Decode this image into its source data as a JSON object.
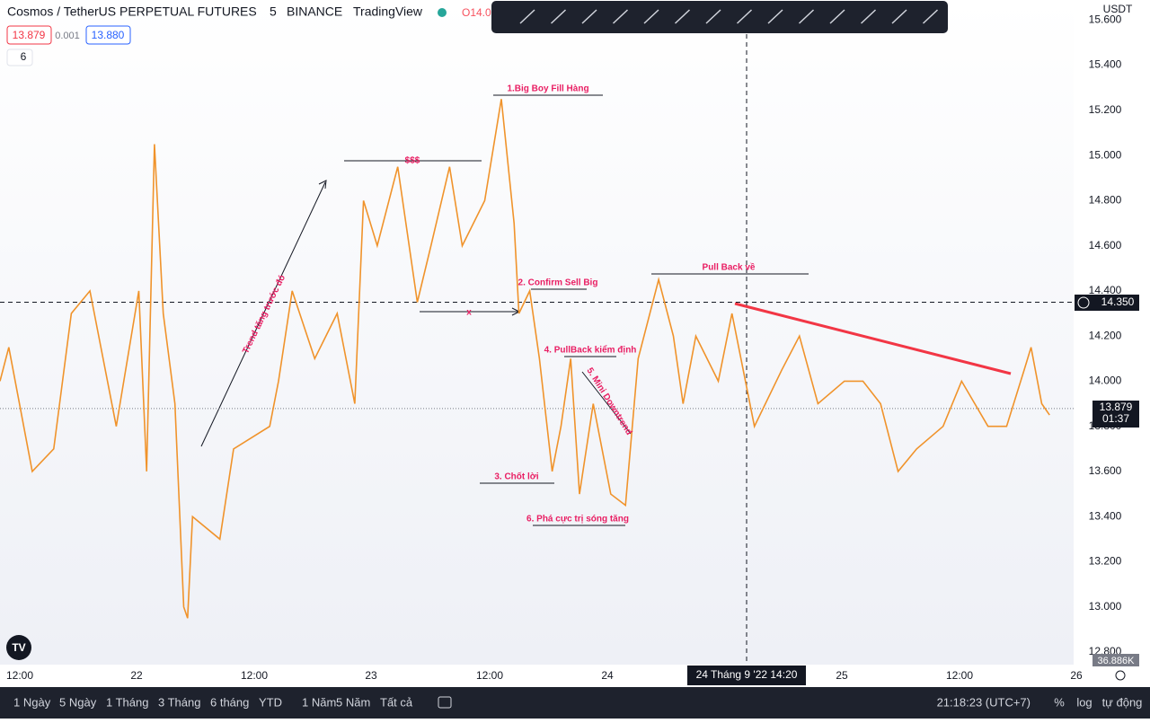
{
  "header": {
    "symbol": "Cosmos / TetherUS PERPETUAL FUTURES",
    "interval": "5",
    "exchange": "BINANCE",
    "source": "TradingView",
    "open_label": "O14.0",
    "bid": "13.879",
    "spread": "0.001",
    "ask": "13.880",
    "indicators": "6"
  },
  "price_axis": {
    "currency": "USDT",
    "ylim": [
      12.8,
      15.6
    ],
    "yticks": [
      {
        "value": 15.6,
        "label": "15.600"
      },
      {
        "value": 15.4,
        "label": "15.400"
      },
      {
        "value": 15.2,
        "label": "15.200"
      },
      {
        "value": 15.0,
        "label": "15.000"
      },
      {
        "value": 14.8,
        "label": "14.800"
      },
      {
        "value": 14.6,
        "label": "14.600"
      },
      {
        "value": 14.4,
        "label": "14.400"
      },
      {
        "value": 14.2,
        "label": "14.200"
      },
      {
        "value": 14.0,
        "label": "14.000"
      },
      {
        "value": 13.8,
        "label": "13.800"
      },
      {
        "value": 13.6,
        "label": "13.600"
      },
      {
        "value": 13.4,
        "label": "13.400"
      },
      {
        "value": 13.2,
        "label": "13.200"
      },
      {
        "value": 13.0,
        "label": "13.000"
      },
      {
        "value": 12.8,
        "label": "12.800"
      }
    ],
    "crosshair": {
      "value": 14.35,
      "label": "14.350"
    },
    "last": {
      "value": 13.879,
      "label": "13.879"
    },
    "countdown": "01:37",
    "volume": "36.886K"
  },
  "price": {
    "xlim": [
      -2,
      107.4
    ],
    "x": [
      -2.0,
      -1.1,
      1.3,
      3.5,
      5.3,
      7.2,
      9.9,
      12.2,
      13.0,
      13.8,
      14.7,
      15.9,
      16.8,
      17.2,
      17.7,
      20.5,
      21.9,
      25.6,
      26.5,
      27.9,
      30.2,
      32.5,
      34.3,
      35.2,
      36.6,
      38.7,
      40.7,
      42.1,
      44.0,
      45.3,
      47.6,
      49.3,
      50.6,
      51.1,
      52.2,
      53.2,
      54.5,
      55.4,
      56.4,
      57.3,
      58.7,
      60.5,
      62.0,
      63.3,
      65.4,
      66.9,
      67.9,
      69.2,
      71.5,
      72.9,
      75.2,
      78.0,
      79.8,
      81.7,
      84.4,
      86.3,
      88.1,
      89.9,
      91.8,
      94.5,
      96.4,
      99.1,
      101.0,
      102.8,
      103.5,
      104.6,
      105.4
    ],
    "values": [
      14.0,
      14.15,
      13.6,
      13.7,
      14.3,
      14.4,
      13.8,
      14.4,
      13.6,
      15.05,
      14.3,
      13.9,
      13.0,
      12.95,
      13.4,
      13.3,
      13.7,
      13.8,
      14.0,
      14.4,
      14.1,
      14.3,
      13.9,
      14.8,
      14.6,
      14.95,
      14.35,
      14.6,
      14.95,
      14.6,
      14.8,
      15.25,
      14.7,
      14.3,
      14.4,
      14.1,
      13.6,
      13.8,
      14.1,
      13.5,
      13.9,
      13.5,
      13.45,
      14.1,
      14.45,
      14.2,
      13.9,
      14.2,
      14.0,
      14.3,
      13.8,
      14.05,
      14.2,
      13.9,
      14.0,
      14.0,
      13.9,
      13.6,
      13.7,
      13.8,
      14.0,
      13.8,
      13.8,
      14.05,
      14.15,
      13.9,
      13.85
    ],
    "color": "#f0932b"
  },
  "time_axis": [
    "12:00",
    "22",
    "12:00",
    "23",
    "12:00",
    "24",
    "25",
    "12:00",
    "26"
  ],
  "crosshair_time": "24 Tháng 9 '22  14:20",
  "annotations": {
    "a1": "1.Big Boy Fill Hàng",
    "money": "$$$",
    "a2": "2. Confirm Sell Big",
    "x": "x",
    "a4": "4. PullBack kiểm định",
    "a5": "5. Mini Downtrend",
    "a3": "3. Chốt lời",
    "a6": "6. Phá cực trị sóng tăng",
    "pullback": "Pull Back về",
    "trend": "Trend tăng trước đó"
  },
  "bottom_bar": {
    "ranges": [
      "1 Ngày",
      "5 Ngày",
      "1 Tháng",
      "3 Tháng",
      "6 tháng",
      "YTD",
      "1 Năm",
      "5 Năm",
      "Tất cả"
    ],
    "clock": "21:18:23 (UTC+7)",
    "percent": "%",
    "log": "log",
    "auto": "tự động"
  }
}
